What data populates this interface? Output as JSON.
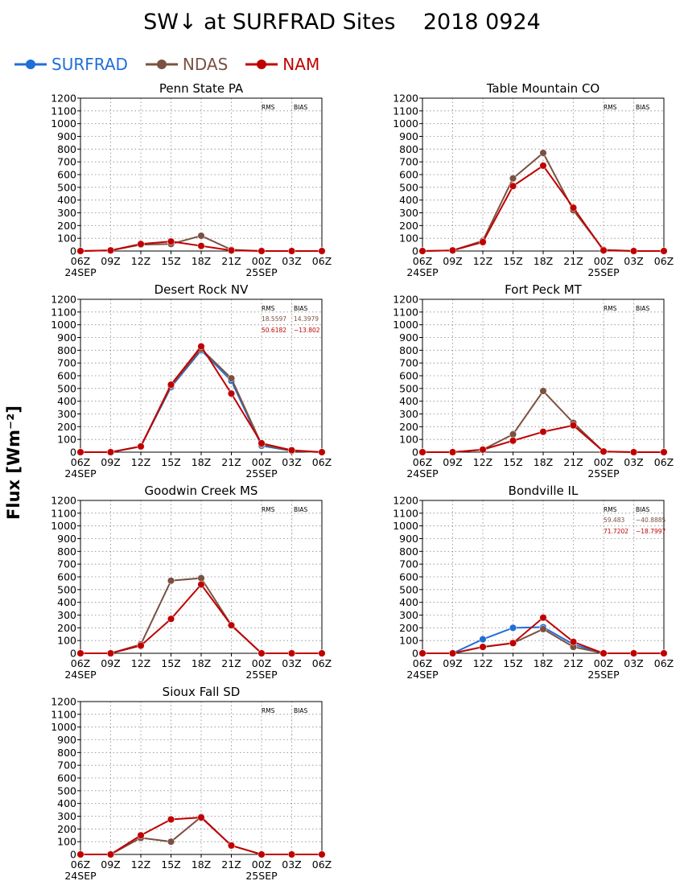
{
  "title": "SW↓ at SURFRAD Sites    2018 0924",
  "ylabel": "Flux [Wm⁻²]",
  "legend": [
    {
      "name": "SURFRAD",
      "color": "#1f6fd6"
    },
    {
      "name": "NDAS",
      "color": "#7b5142"
    },
    {
      "name": "NAM",
      "color": "#c00000"
    }
  ],
  "chart_data": [
    {
      "type": "line",
      "title": "Penn State PA",
      "x": [
        "06Z",
        "09Z",
        "12Z",
        "15Z",
        "18Z",
        "21Z",
        "00Z",
        "03Z",
        "06Z"
      ],
      "x_dates": [
        "24SEP",
        "",
        "",
        "",
        "",
        "",
        "25SEP",
        "",
        ""
      ],
      "ylim": [
        0,
        1200
      ],
      "yticks": [
        0,
        100,
        200,
        300,
        400,
        500,
        600,
        700,
        800,
        900,
        1000,
        1100,
        1200
      ],
      "grid": true,
      "stats_header": [
        "RMS",
        "BIAS"
      ],
      "stats": [],
      "series": [
        {
          "name": "SURFRAD",
          "values": [
            null,
            null,
            null,
            null,
            null,
            null,
            null,
            null,
            null
          ]
        },
        {
          "name": "NDAS",
          "values": [
            0,
            5,
            50,
            55,
            120,
            10,
            0,
            0,
            0
          ]
        },
        {
          "name": "NAM",
          "values": [
            0,
            5,
            55,
            75,
            40,
            5,
            0,
            0,
            0
          ]
        }
      ]
    },
    {
      "type": "line",
      "title": "Table Mountain CO",
      "x": [
        "06Z",
        "09Z",
        "12Z",
        "15Z",
        "18Z",
        "21Z",
        "00Z",
        "03Z",
        "06Z"
      ],
      "x_dates": [
        "24SEP",
        "",
        "",
        "",
        "",
        "",
        "25SEP",
        "",
        ""
      ],
      "ylim": [
        0,
        1200
      ],
      "yticks": [
        0,
        100,
        200,
        300,
        400,
        500,
        600,
        700,
        800,
        900,
        1000,
        1100,
        1200
      ],
      "grid": true,
      "stats_header": [
        "RMS",
        "BIAS"
      ],
      "stats": [],
      "series": [
        {
          "name": "SURFRAD",
          "values": [
            null,
            null,
            null,
            null,
            null,
            null,
            null,
            null,
            null
          ]
        },
        {
          "name": "NDAS",
          "values": [
            0,
            5,
            80,
            570,
            770,
            320,
            10,
            0,
            0
          ]
        },
        {
          "name": "NAM",
          "values": [
            0,
            5,
            70,
            510,
            670,
            340,
            5,
            0,
            0
          ]
        }
      ]
    },
    {
      "type": "line",
      "title": "Desert Rock NV",
      "x": [
        "06Z",
        "09Z",
        "12Z",
        "15Z",
        "18Z",
        "21Z",
        "00Z",
        "03Z",
        "06Z"
      ],
      "x_dates": [
        "24SEP",
        "",
        "",
        "",
        "",
        "",
        "25SEP",
        "",
        ""
      ],
      "ylim": [
        0,
        1200
      ],
      "yticks": [
        0,
        100,
        200,
        300,
        400,
        500,
        600,
        700,
        800,
        900,
        1000,
        1100,
        1200
      ],
      "grid": true,
      "stats_header": [
        "RMS",
        "BIAS"
      ],
      "stats": [
        {
          "rms": "18.5597",
          "bias": "14.3979",
          "color": "#7b5142"
        },
        {
          "rms": "50.6182",
          "bias": "−13.802",
          "color": "#c00000"
        }
      ],
      "series": [
        {
          "name": "SURFRAD",
          "values": [
            0,
            0,
            45,
            510,
            800,
            560,
            50,
            10,
            0
          ]
        },
        {
          "name": "NDAS",
          "values": [
            0,
            0,
            45,
            520,
            810,
            580,
            60,
            10,
            0
          ]
        },
        {
          "name": "NAM",
          "values": [
            0,
            0,
            45,
            530,
            830,
            460,
            70,
            15,
            0
          ]
        }
      ]
    },
    {
      "type": "line",
      "title": "Fort Peck MT",
      "x": [
        "06Z",
        "09Z",
        "12Z",
        "15Z",
        "18Z",
        "21Z",
        "00Z",
        "03Z",
        "06Z"
      ],
      "x_dates": [
        "24SEP",
        "",
        "",
        "",
        "",
        "",
        "25SEP",
        "",
        ""
      ],
      "ylim": [
        0,
        1200
      ],
      "yticks": [
        0,
        100,
        200,
        300,
        400,
        500,
        600,
        700,
        800,
        900,
        1000,
        1100,
        1200
      ],
      "grid": true,
      "stats_header": [
        "RMS",
        "BIAS"
      ],
      "stats": [],
      "series": [
        {
          "name": "SURFRAD",
          "values": [
            null,
            null,
            null,
            null,
            null,
            null,
            null,
            null,
            null
          ]
        },
        {
          "name": "NDAS",
          "values": [
            0,
            0,
            20,
            140,
            480,
            230,
            5,
            0,
            0
          ]
        },
        {
          "name": "NAM",
          "values": [
            0,
            0,
            20,
            90,
            160,
            210,
            5,
            0,
            0
          ]
        }
      ]
    },
    {
      "type": "line",
      "title": "Goodwin Creek MS",
      "x": [
        "06Z",
        "09Z",
        "12Z",
        "15Z",
        "18Z",
        "21Z",
        "00Z",
        "03Z",
        "06Z"
      ],
      "x_dates": [
        "24SEP",
        "",
        "",
        "",
        "",
        "",
        "25SEP",
        "",
        ""
      ],
      "ylim": [
        0,
        1200
      ],
      "yticks": [
        0,
        100,
        200,
        300,
        400,
        500,
        600,
        700,
        800,
        900,
        1000,
        1100,
        1200
      ],
      "grid": true,
      "stats_header": [
        "RMS",
        "BIAS"
      ],
      "stats": [],
      "series": [
        {
          "name": "SURFRAD",
          "values": [
            null,
            null,
            null,
            null,
            null,
            null,
            null,
            null,
            null
          ]
        },
        {
          "name": "NDAS",
          "values": [
            0,
            0,
            70,
            570,
            590,
            220,
            0,
            0,
            0
          ]
        },
        {
          "name": "NAM",
          "values": [
            0,
            0,
            60,
            270,
            540,
            220,
            0,
            0,
            0
          ]
        }
      ]
    },
    {
      "type": "line",
      "title": "Bondville IL",
      "x": [
        "06Z",
        "09Z",
        "12Z",
        "15Z",
        "18Z",
        "21Z",
        "00Z",
        "03Z",
        "06Z"
      ],
      "x_dates": [
        "24SEP",
        "",
        "",
        "",
        "",
        "",
        "25SEP",
        "",
        ""
      ],
      "ylim": [
        0,
        1200
      ],
      "yticks": [
        0,
        100,
        200,
        300,
        400,
        500,
        600,
        700,
        800,
        900,
        1000,
        1100,
        1200
      ],
      "grid": true,
      "stats_header": [
        "RMS",
        "BIAS"
      ],
      "stats": [
        {
          "rms": "59.483",
          "bias": "−40.8885",
          "color": "#7b5142"
        },
        {
          "rms": "71.7202",
          "bias": "−18.7997",
          "color": "#c00000"
        }
      ],
      "series": [
        {
          "name": "SURFRAD",
          "values": [
            null,
            0,
            110,
            200,
            205,
            70,
            0,
            null,
            null
          ]
        },
        {
          "name": "NDAS",
          "values": [
            0,
            0,
            50,
            80,
            190,
            50,
            0,
            0,
            0
          ]
        },
        {
          "name": "NAM",
          "values": [
            0,
            0,
            50,
            80,
            280,
            90,
            0,
            0,
            0
          ]
        }
      ]
    },
    {
      "type": "line",
      "title": "Sioux Fall SD",
      "x": [
        "06Z",
        "09Z",
        "12Z",
        "15Z",
        "18Z",
        "21Z",
        "00Z",
        "03Z",
        "06Z"
      ],
      "x_dates": [
        "24SEP",
        "",
        "",
        "",
        "",
        "",
        "25SEP",
        "",
        ""
      ],
      "ylim": [
        0,
        1200
      ],
      "yticks": [
        0,
        100,
        200,
        300,
        400,
        500,
        600,
        700,
        800,
        900,
        1000,
        1100,
        1200
      ],
      "grid": true,
      "stats_header": [
        "RMS",
        "BIAS"
      ],
      "stats": [],
      "series": [
        {
          "name": "SURFRAD",
          "values": [
            null,
            null,
            null,
            null,
            null,
            null,
            null,
            null,
            null
          ]
        },
        {
          "name": "NDAS",
          "values": [
            0,
            0,
            130,
            100,
            295,
            70,
            0,
            0,
            0
          ]
        },
        {
          "name": "NAM",
          "values": [
            0,
            0,
            150,
            275,
            290,
            70,
            0,
            0,
            0
          ]
        }
      ]
    }
  ]
}
